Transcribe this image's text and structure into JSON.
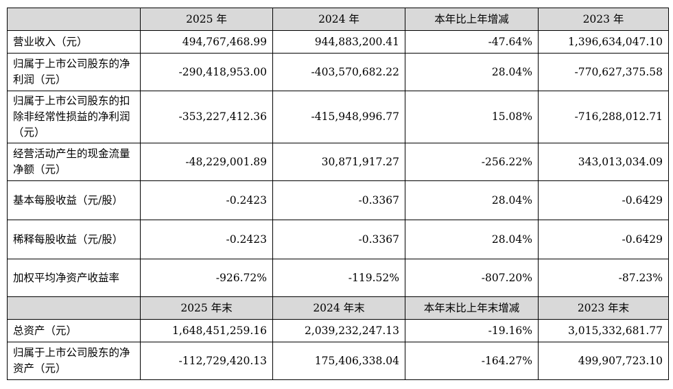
{
  "headers1": [
    "",
    "2025 年",
    "2024 年",
    "本年比上年增减",
    "2023 年"
  ],
  "rows1": [
    {
      "label": "营业收入（元）",
      "v2025": "494,767,468.99",
      "v2024": "944,883,200.41",
      "change": "-47.64%",
      "v2023": "1,396,634,047.10"
    },
    {
      "label": "归属于上市公司股东的净利润（元）",
      "v2025": "-290,418,953.00",
      "v2024": "-403,570,682.22",
      "change": "28.04%",
      "v2023": "-770,627,375.58"
    },
    {
      "label": "归属于上市公司股东的扣除非经常性损益的净利润（元）",
      "v2025": "-353,227,412.36",
      "v2024": "-415,948,996.77",
      "change": "15.08%",
      "v2023": "-716,288,012.71"
    },
    {
      "label": "经营活动产生的现金流量净额（元）",
      "v2025": "-48,229,001.89",
      "v2024": "30,871,917.27",
      "change": "-256.22%",
      "v2023": "343,013,034.09"
    },
    {
      "label": "基本每股收益（元/股）",
      "v2025": "-0.2423",
      "v2024": "-0.3367",
      "change": "28.04%",
      "v2023": "-0.6429"
    },
    {
      "label": "稀释每股收益（元/股）",
      "v2025": "-0.2423",
      "v2024": "-0.3367",
      "change": "28.04%",
      "v2023": "-0.6429"
    },
    {
      "label": "加权平均净资产收益率",
      "v2025": "-926.72%",
      "v2024": "-119.52%",
      "change": "-807.20%",
      "v2023": "-87.23%"
    }
  ],
  "headers2": [
    "",
    "2025 年末",
    "2024 年末",
    "本年末比上年末增减",
    "2023 年末"
  ],
  "rows2": [
    {
      "label": "总资产（元）",
      "v2025": "1,648,451,259.16",
      "v2024": "2,039,232,247.13",
      "change": "-19.16%",
      "v2023": "3,015,332,681.77"
    },
    {
      "label": "归属于上市公司股东的净资产（元）",
      "v2025": "-112,729,420.13",
      "v2024": "175,406,338.04",
      "change": "-164.27%",
      "v2023": "499,907,723.10"
    }
  ]
}
